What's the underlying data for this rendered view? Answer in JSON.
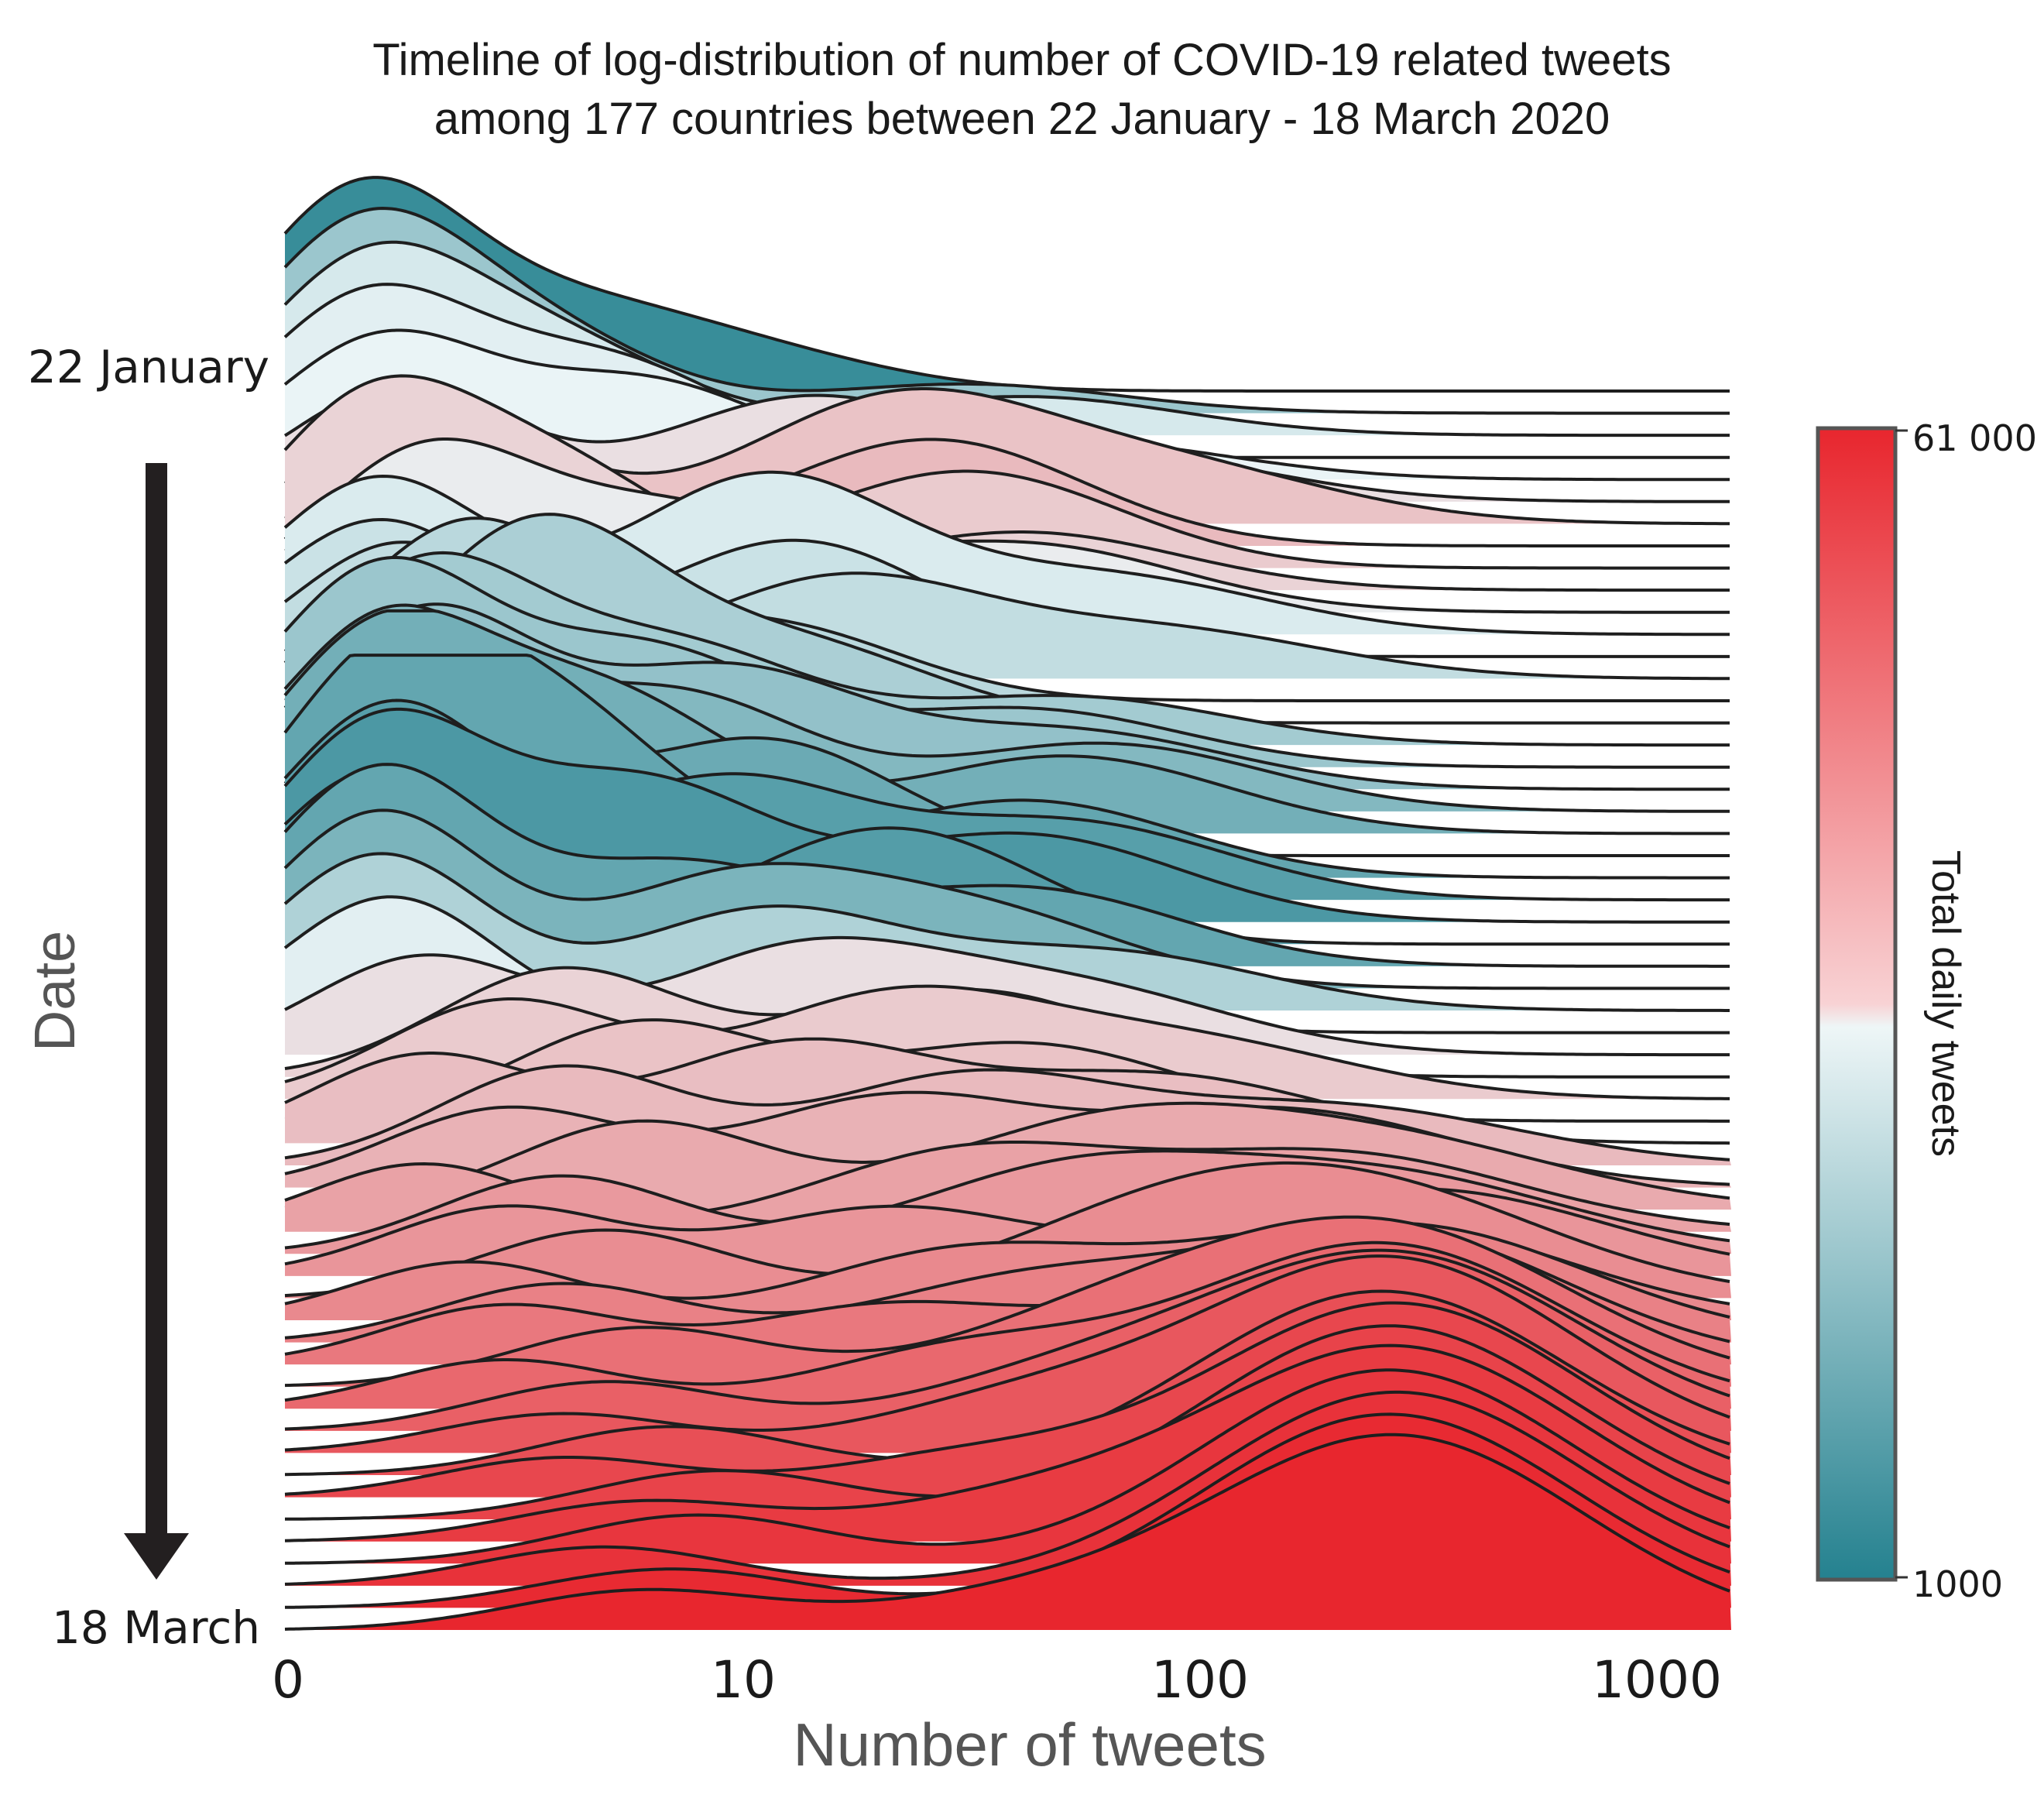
{
  "chart_data": {
    "type": "ridgeline",
    "title": "Timeline of log-distribution of number of COVID-19 related tweets",
    "subtitle": "among 177 countries between 22 January - 18 March 2020",
    "xlabel": "Number of tweets",
    "xscale": "log",
    "xticks": [
      "0",
      "10",
      "100",
      "1000"
    ],
    "ylabel": "Date",
    "date_start": "22 January",
    "date_end": "18 March",
    "colorbar": {
      "label": "Total daily tweets",
      "min_label": "1000",
      "max_label": "61 000",
      "min": 1000,
      "max": 61000,
      "low_color": "#24818f",
      "mid_color": "#eaf4f6",
      "high_color": "#e8262e"
    },
    "series_count": 57,
    "series": [
      {
        "date": "22 January",
        "total_tweets_scale": 0.05,
        "peaks": [
          [
            0.45,
            1.0
          ],
          [
            3.0,
            0.35
          ],
          [
            9.0,
            0.2
          ]
        ]
      },
      {
        "date": "",
        "total_tweets_scale": 0.3,
        "peaks": [
          [
            0.45,
            0.9
          ],
          [
            2.5,
            0.4
          ],
          [
            30,
            0.15
          ]
        ]
      },
      {
        "date": "",
        "total_tweets_scale": 0.45,
        "peaks": [
          [
            0.5,
            0.85
          ],
          [
            3.0,
            0.45
          ],
          [
            40,
            0.2
          ]
        ]
      },
      {
        "date": "",
        "total_tweets_scale": 0.48,
        "peaks": [
          [
            0.5,
            0.8
          ],
          [
            4.0,
            0.5
          ]
        ]
      },
      {
        "date": "",
        "total_tweets_scale": 0.5,
        "peaks": [
          [
            0.6,
            0.7
          ],
          [
            5.0,
            0.5
          ],
          [
            50,
            0.2
          ]
        ]
      },
      {
        "date": "",
        "total_tweets_scale": 0.55,
        "peaks": [
          [
            0.8,
            0.6
          ],
          [
            12,
            0.5
          ],
          [
            60,
            0.25
          ]
        ]
      },
      {
        "date": "",
        "total_tweets_scale": 0.62,
        "peaks": [
          [
            1.2,
            0.55
          ],
          [
            20,
            0.6
          ],
          [
            80,
            0.3
          ]
        ]
      },
      {
        "date": "",
        "total_tweets_scale": 0.64,
        "peaks": [
          [
            1.5,
            0.5
          ],
          [
            25,
            0.55
          ]
        ]
      },
      {
        "date": "",
        "total_tweets_scale": 0.6,
        "peaks": [
          [
            2.0,
            0.5
          ],
          [
            30,
            0.5
          ]
        ]
      },
      {
        "date": "",
        "total_tweets_scale": 0.58,
        "peaks": [
          [
            0.5,
            0.9
          ],
          [
            3.0,
            0.6
          ],
          [
            40,
            0.3
          ]
        ]
      },
      {
        "date": "",
        "total_tweets_scale": 0.52,
        "peaks": [
          [
            1.0,
            0.8
          ],
          [
            6.0,
            0.5
          ],
          [
            40,
            0.35
          ]
        ]
      },
      {
        "date": "",
        "total_tweets_scale": 0.46,
        "peaks": [
          [
            0.6,
            0.8
          ],
          [
            10,
            0.8
          ],
          [
            60,
            0.3
          ]
        ]
      },
      {
        "date": "",
        "total_tweets_scale": 0.42,
        "peaks": [
          [
            0.6,
            0.7
          ],
          [
            12,
            0.6
          ]
        ]
      },
      {
        "date": "",
        "total_tweets_scale": 0.4,
        "peaks": [
          [
            0.8,
            0.7
          ],
          [
            15,
            0.5
          ],
          [
            80,
            0.25
          ]
        ]
      },
      {
        "date": "",
        "total_tweets_scale": 0.38,
        "peaks": [
          [
            1.5,
            0.9
          ],
          [
            10,
            0.4
          ]
        ]
      },
      {
        "date": "",
        "total_tweets_scale": 0.34,
        "peaks": [
          [
            2.5,
            1.0
          ],
          [
            12,
            0.4
          ]
        ]
      },
      {
        "date": "",
        "total_tweets_scale": 0.32,
        "peaks": [
          [
            1.0,
            0.9
          ],
          [
            6,
            0.5
          ],
          [
            50,
            0.25
          ]
        ]
      },
      {
        "date": "",
        "total_tweets_scale": 0.3,
        "peaks": [
          [
            0.6,
            1.0
          ],
          [
            5,
            0.6
          ],
          [
            40,
            0.3
          ]
        ]
      },
      {
        "date": "",
        "total_tweets_scale": 0.28,
        "peaks": [
          [
            1.0,
            0.9
          ],
          [
            8,
            0.6
          ],
          [
            50,
            0.3
          ]
        ]
      },
      {
        "date": "",
        "total_tweets_scale": 0.24,
        "peaks": [
          [
            0.7,
            1.0
          ],
          [
            6,
            0.6
          ],
          [
            60,
            0.35
          ]
        ]
      },
      {
        "date": "",
        "total_tweets_scale": 0.2,
        "peaks": [
          [
            0.6,
            1.0
          ],
          [
            4,
            0.7
          ],
          [
            50,
            0.4
          ]
        ]
      },
      {
        "date": "",
        "total_tweets_scale": 0.18,
        "peaks": [
          [
            1.0,
            0.8
          ],
          [
            10,
            0.6
          ]
        ]
      },
      {
        "date": "",
        "total_tweets_scale": 0.16,
        "peaks": [
          [
            0.6,
            1.0
          ],
          [
            3,
            0.8
          ],
          [
            40,
            0.4
          ]
        ]
      },
      {
        "date": "",
        "total_tweets_scale": 0.13,
        "peaks": [
          [
            0.7,
            1.0
          ],
          [
            8,
            0.6
          ],
          [
            50,
            0.4
          ]
        ]
      },
      {
        "date": "",
        "total_tweets_scale": 0.1,
        "peaks": [
          [
            0.6,
            1.0
          ],
          [
            5,
            0.7
          ],
          [
            40,
            0.45
          ]
        ]
      },
      {
        "date": "",
        "total_tweets_scale": 0.12,
        "peaks": [
          [
            0.6,
            0.9
          ],
          [
            20,
            0.6
          ]
        ]
      },
      {
        "date": "",
        "total_tweets_scale": 0.16,
        "peaks": [
          [
            0.6,
            1.0
          ],
          [
            6,
            0.5
          ],
          [
            40,
            0.4
          ]
        ]
      },
      {
        "date": "",
        "total_tweets_scale": 0.22,
        "peaks": [
          [
            0.6,
            0.9
          ],
          [
            8,
            0.5
          ],
          [
            30,
            0.4
          ]
        ]
      },
      {
        "date": "",
        "total_tweets_scale": 0.35,
        "peaks": [
          [
            0.6,
            0.8
          ],
          [
            10,
            0.5
          ],
          [
            60,
            0.3
          ]
        ]
      },
      {
        "date": "",
        "total_tweets_scale": 0.48,
        "peaks": [
          [
            0.7,
            0.7
          ],
          [
            20,
            0.4
          ]
        ]
      },
      {
        "date": "",
        "total_tweets_scale": 0.55,
        "peaks": [
          [
            1.0,
            0.5
          ],
          [
            12,
            0.5
          ],
          [
            50,
            0.35
          ]
        ]
      },
      {
        "date": "",
        "total_tweets_scale": 0.58,
        "peaks": [
          [
            3.0,
            0.55
          ],
          [
            30,
            0.45
          ]
        ]
      },
      {
        "date": "",
        "total_tweets_scale": 0.6,
        "peaks": [
          [
            2.0,
            0.5
          ],
          [
            20,
            0.5
          ],
          [
            90,
            0.3
          ]
        ]
      },
      {
        "date": "",
        "total_tweets_scale": 0.62,
        "peaks": [
          [
            5.0,
            0.5
          ],
          [
            40,
            0.4
          ]
        ]
      },
      {
        "date": "",
        "total_tweets_scale": 0.63,
        "peaks": [
          [
            1.0,
            0.45
          ],
          [
            12,
            0.5
          ],
          [
            80,
            0.35
          ]
        ]
      },
      {
        "date": "",
        "total_tweets_scale": 0.64,
        "peaks": [
          [
            3.0,
            0.5
          ],
          [
            30,
            0.45
          ],
          [
            200,
            0.3
          ]
        ]
      },
      {
        "date": "",
        "total_tweets_scale": 0.66,
        "peaks": [
          [
            2.0,
            0.4
          ],
          [
            20,
            0.45
          ],
          [
            150,
            0.4
          ]
        ]
      },
      {
        "date": "",
        "total_tweets_scale": 0.68,
        "peaks": [
          [
            5.0,
            0.45
          ],
          [
            60,
            0.4
          ],
          [
            250,
            0.35
          ]
        ]
      },
      {
        "date": "",
        "total_tweets_scale": 0.7,
        "peaks": [
          [
            1.0,
            0.35
          ],
          [
            30,
            0.4
          ],
          [
            200,
            0.4
          ]
        ]
      },
      {
        "date": "",
        "total_tweets_scale": 0.72,
        "peaks": [
          [
            3.0,
            0.4
          ],
          [
            50,
            0.4
          ],
          [
            250,
            0.4
          ]
        ]
      },
      {
        "date": "",
        "total_tweets_scale": 0.73,
        "peaks": [
          [
            2.0,
            0.35
          ],
          [
            20,
            0.35
          ],
          [
            300,
            0.45
          ]
        ]
      },
      {
        "date": "",
        "total_tweets_scale": 0.75,
        "peaks": [
          [
            4.0,
            0.35
          ],
          [
            80,
            0.35
          ],
          [
            250,
            0.5
          ]
        ]
      },
      {
        "date": "",
        "total_tweets_scale": 0.76,
        "peaks": [
          [
            1.5,
            0.3
          ],
          [
            30,
            0.35
          ],
          [
            250,
            0.5
          ]
        ]
      },
      {
        "date": "",
        "total_tweets_scale": 0.78,
        "peaks": [
          [
            3.0,
            0.3
          ],
          [
            40,
            0.3
          ],
          [
            280,
            0.6
          ]
        ]
      },
      {
        "date": "",
        "total_tweets_scale": 0.8,
        "peaks": [
          [
            2.0,
            0.3
          ],
          [
            20,
            0.3
          ],
          [
            250,
            0.7
          ]
        ]
      },
      {
        "date": "",
        "total_tweets_scale": 0.82,
        "peaks": [
          [
            5.0,
            0.3
          ],
          [
            60,
            0.3
          ],
          [
            260,
            0.8
          ]
        ]
      },
      {
        "date": "",
        "total_tweets_scale": 0.84,
        "peaks": [
          [
            2.0,
            0.25
          ],
          [
            30,
            0.3
          ],
          [
            250,
            0.85
          ]
        ]
      },
      {
        "date": "",
        "total_tweets_scale": 0.86,
        "peaks": [
          [
            4.0,
            0.25
          ],
          [
            50,
            0.25
          ],
          [
            270,
            0.9
          ]
        ]
      },
      {
        "date": "",
        "total_tweets_scale": 0.88,
        "peaks": [
          [
            3.0,
            0.2
          ],
          [
            40,
            0.25
          ],
          [
            260,
            1.0
          ]
        ]
      },
      {
        "date": "",
        "total_tweets_scale": 0.9,
        "peaks": [
          [
            6.0,
            0.25
          ],
          [
            250,
            0.95
          ]
        ]
      },
      {
        "date": "",
        "total_tweets_scale": 0.92,
        "peaks": [
          [
            3.0,
            0.2
          ],
          [
            30,
            0.2
          ],
          [
            270,
            1.0
          ]
        ]
      },
      {
        "date": "",
        "total_tweets_scale": 0.93,
        "peaks": [
          [
            8.0,
            0.25
          ],
          [
            260,
            1.0
          ]
        ]
      },
      {
        "date": "",
        "total_tweets_scale": 0.95,
        "peaks": [
          [
            5.0,
            0.2
          ],
          [
            40,
            0.2
          ],
          [
            270,
            1.0
          ]
        ]
      },
      {
        "date": "",
        "total_tweets_scale": 0.96,
        "peaks": [
          [
            7.0,
            0.25
          ],
          [
            260,
            1.0
          ]
        ]
      },
      {
        "date": "",
        "total_tweets_scale": 0.97,
        "peaks": [
          [
            4.0,
            0.2
          ],
          [
            270,
            1.0
          ]
        ]
      },
      {
        "date": "",
        "total_tweets_scale": 0.99,
        "peaks": [
          [
            6.0,
            0.2
          ],
          [
            260,
            1.0
          ]
        ]
      },
      {
        "date": "18 March",
        "total_tweets_scale": 1.0,
        "peaks": [
          [
            5.0,
            0.2
          ],
          [
            40,
            0.15
          ],
          [
            270,
            1.0
          ]
        ]
      }
    ]
  }
}
